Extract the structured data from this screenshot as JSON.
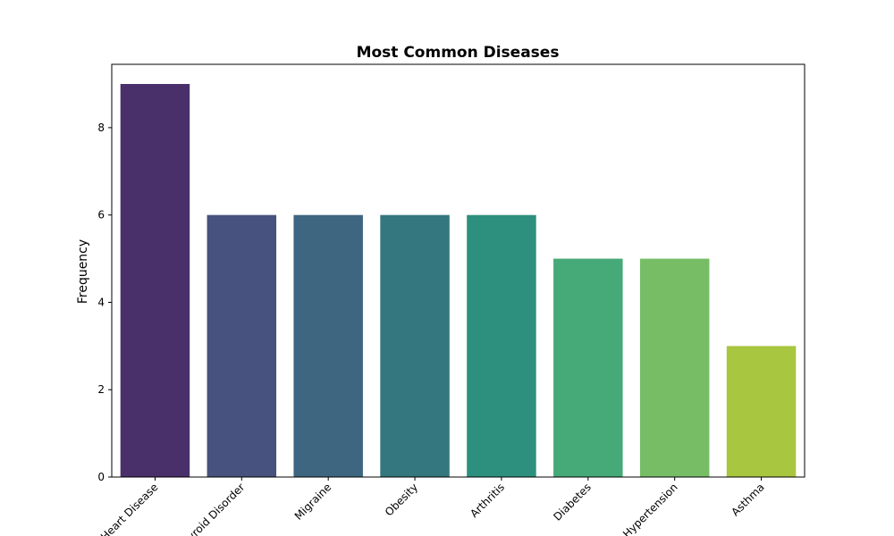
{
  "chart_data": {
    "type": "bar",
    "title": "Most Common Diseases",
    "xlabel": "",
    "ylabel": "Frequency",
    "categories": [
      "Heart Disease",
      "Thyroid Disorder",
      "Migraine",
      "Obesity",
      "Arthritis",
      "Diabetes",
      "Hypertension",
      "Asthma"
    ],
    "values": [
      9,
      6,
      6,
      6,
      6,
      5,
      5,
      3
    ],
    "colors": [
      "#4a306b",
      "#47527e",
      "#3e6681",
      "#34777e",
      "#2d907e",
      "#46a978",
      "#76bd66",
      "#a9c640"
    ],
    "ylim": [
      0,
      9.45
    ],
    "yticks": [
      0,
      2,
      4,
      6,
      8
    ],
    "grid": false,
    "legend": "none"
  }
}
